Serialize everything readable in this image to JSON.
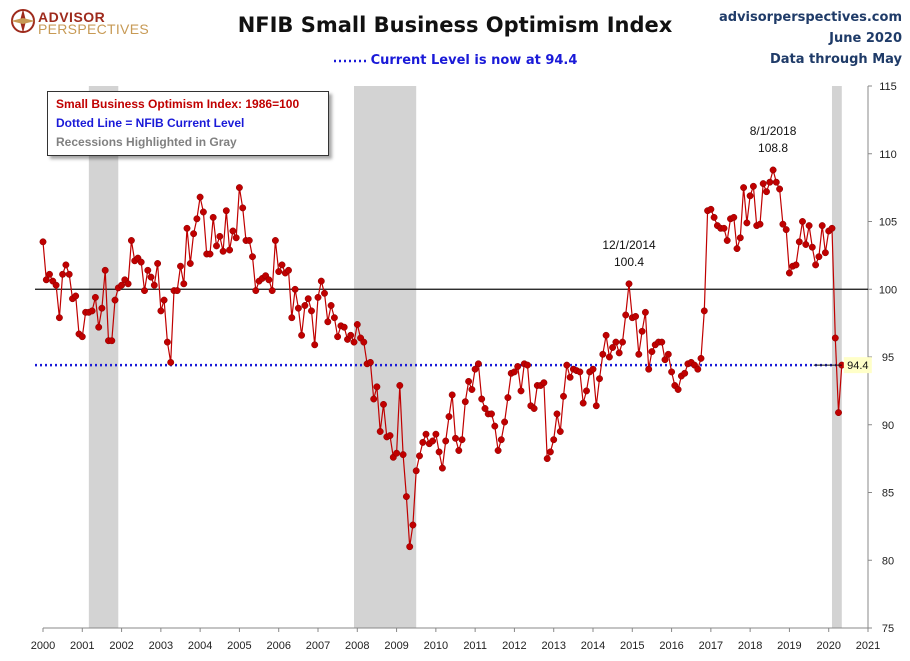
{
  "logo": {
    "name_top": "ADVISOR",
    "name_bottom": "PERSPECTIVES"
  },
  "header": {
    "title": "NFIB Small Business Optimism Index",
    "subtitle": "Current Level is now at 94.4",
    "site": "advisorperspectives.com",
    "date": "June 2020",
    "data_through": "Data through May"
  },
  "legend": {
    "line1": "Small Business Optimism Index: 1986=100",
    "line2": "Dotted Line = NFIB Current Level",
    "line3": "Recessions Highlighted in Gray"
  },
  "colors": {
    "series": "#c00000",
    "current_line": "#1a1ad8",
    "recession": "#d3d3d3",
    "title_right": "#1f3b68"
  },
  "chart_data": {
    "type": "line",
    "title": "NFIB Small Business Optimism Index",
    "x_range": [
      "2000-01",
      "2021-01"
    ],
    "ylim": [
      75,
      115
    ],
    "y_ticks": [
      75,
      80,
      85,
      90,
      95,
      100,
      105,
      110,
      115
    ],
    "x_ticks": [
      "2000",
      "2001",
      "2002",
      "2003",
      "2004",
      "2005",
      "2006",
      "2007",
      "2008",
      "2009",
      "2010",
      "2011",
      "2012",
      "2013",
      "2014",
      "2015",
      "2016",
      "2017",
      "2018",
      "2019",
      "2020",
      "2021"
    ],
    "y_axis_position": "right",
    "reference_line": 100,
    "current_level": 94.4,
    "current_level_label": "94.4",
    "recessions": [
      [
        "2001-03",
        "2001-11"
      ],
      [
        "2007-12",
        "2009-06"
      ],
      [
        "2020-02",
        "2020-04"
      ]
    ],
    "annotations": [
      {
        "date": "2014-12",
        "label": "12/1/2014",
        "value_label": "100.4"
      },
      {
        "date": "2018-08",
        "label": "8/1/2018",
        "value_label": "108.8"
      }
    ],
    "series": [
      {
        "start": "2000-01",
        "values": [
          103.5,
          100.7,
          101.1,
          100.6,
          100.3,
          97.9,
          101.1,
          101.8,
          101.1,
          99.3,
          99.5,
          96.7,
          96.5,
          98.3,
          98.3,
          98.4,
          99.4,
          97.2,
          98.6,
          101.4,
          96.2,
          96.2,
          99.2,
          100.1,
          100.3,
          100.7,
          100.4,
          103.6,
          102.1,
          102.3,
          102.0,
          99.9,
          101.4,
          100.9,
          100.3,
          101.9,
          98.4,
          99.2,
          96.1,
          94.6,
          99.9,
          99.9,
          101.7,
          100.4,
          104.5,
          101.9,
          104.1,
          105.2,
          106.8,
          105.7,
          102.6,
          102.6,
          105.3,
          103.2,
          103.9,
          102.8,
          105.8,
          102.9,
          104.3,
          103.8,
          107.5,
          106.0,
          103.6,
          103.6,
          102.4,
          99.9,
          100.6,
          100.8,
          101.0,
          100.7,
          99.9,
          103.6,
          101.3,
          101.8,
          101.2,
          101.4,
          97.9,
          100.0,
          98.6,
          96.6,
          98.8,
          99.3,
          98.4,
          95.9,
          99.4,
          100.6,
          99.7,
          97.6,
          98.8,
          97.9,
          96.5,
          97.3,
          97.2,
          96.3,
          96.6,
          96.1,
          97.4,
          96.4,
          96.1,
          94.5,
          94.6,
          91.9,
          92.8,
          89.5,
          91.5,
          89.1,
          89.2,
          87.6,
          87.9,
          92.9,
          87.8,
          84.7,
          81.0,
          82.6,
          86.6,
          87.7,
          88.7,
          89.3,
          88.6,
          88.8,
          89.3,
          88.0,
          86.8,
          88.8,
          90.6,
          92.2,
          89.0,
          88.1,
          88.9,
          91.7,
          93.2,
          92.6,
          94.1,
          94.5,
          91.9,
          91.2,
          90.8,
          90.8,
          89.9,
          88.1,
          88.9,
          90.2,
          92.0,
          93.8,
          93.9,
          94.3,
          92.5,
          94.5,
          94.4,
          91.4,
          91.2,
          92.9,
          92.9,
          93.1,
          87.5,
          88.0,
          88.9,
          90.8,
          89.5,
          92.1,
          94.4,
          93.5,
          94.1,
          94.0,
          93.9,
          91.6,
          92.5,
          93.9,
          94.1,
          91.4,
          93.4,
          95.2,
          96.6,
          95.0,
          95.7,
          96.1,
          95.3,
          96.1,
          98.1,
          100.4,
          97.9,
          98.0,
          95.2,
          96.9,
          98.3,
          94.1,
          95.4,
          95.9,
          96.1,
          96.1,
          94.8,
          95.2,
          93.9,
          92.9,
          92.6,
          93.6,
          93.8,
          94.5,
          94.6,
          94.4,
          94.1,
          94.9,
          98.4,
          105.8,
          105.9,
          105.3,
          104.7,
          104.5,
          104.5,
          103.6,
          105.2,
          105.3,
          103.0,
          103.8,
          107.5,
          104.9,
          106.9,
          107.6,
          104.7,
          104.8,
          107.8,
          107.2,
          107.9,
          108.8,
          107.9,
          107.4,
          104.8,
          104.4,
          101.2,
          101.7,
          101.8,
          103.5,
          105.0,
          103.3,
          104.7,
          103.1,
          101.8,
          102.4,
          104.7,
          102.7,
          104.3,
          104.5,
          96.4,
          90.9,
          94.4
        ]
      }
    ]
  }
}
